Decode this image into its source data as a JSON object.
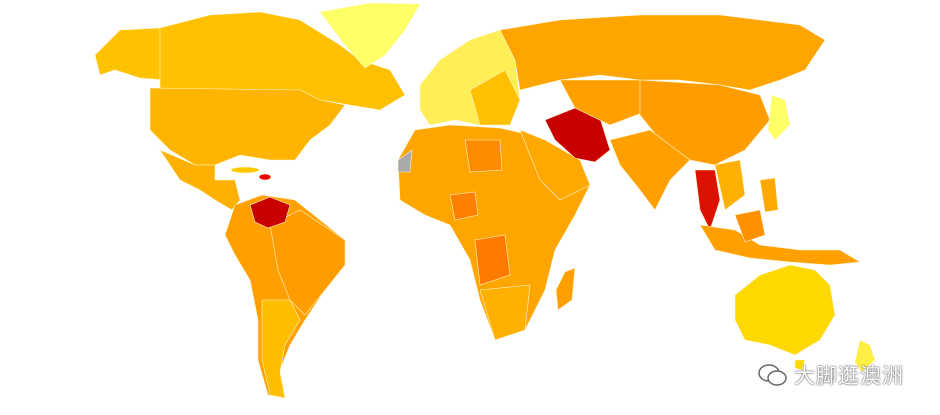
{
  "watermark": {
    "text": "大脚逛澳洲"
  }
}
